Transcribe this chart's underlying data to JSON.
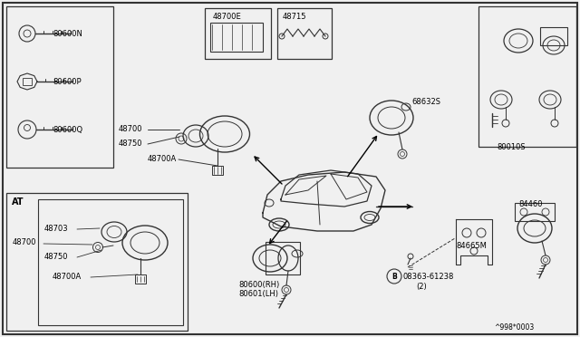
{
  "bg_color": "#f0f0f0",
  "border_color": "#333333",
  "line_color": "#333333",
  "text_color": "#000000",
  "fig_width": 6.4,
  "fig_height": 3.72,
  "dpi": 100,
  "labels": {
    "key_n": "80600N",
    "key_p": "80600P",
    "key_q": "80600Q",
    "steer_48700": "48700",
    "steer_48750": "48750",
    "steer_48700A": "48700A",
    "sub_48700E": "48700E",
    "sub_48715": "48715",
    "glove_68632S": "68632S",
    "door_box_80010S": "80010S",
    "door_80600RH": "80600(RH)",
    "door_80601LH": "80601(LH)",
    "trunk_84460": "84460",
    "trunk_84665M": "84665M",
    "bolt_B": "B",
    "bolt_num": "08363-61238",
    "bolt_qty": "(2)",
    "at_label": "AT",
    "at_48700": "48700",
    "at_48703": "48703",
    "at_48750": "48750",
    "at_48700A": "48700A",
    "watermark": "^998*0003"
  }
}
